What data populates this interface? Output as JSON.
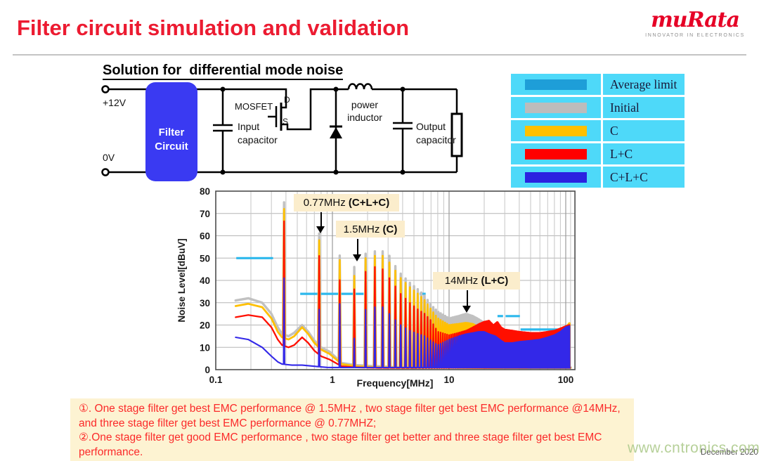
{
  "slide": {
    "title": "Filter circuit simulation and validation",
    "title_color": "#ec1b31"
  },
  "logo": {
    "wordmark": "muRata",
    "tagline": "INNOVATOR IN ELECTRONICS",
    "brand_color": "#e60026"
  },
  "section": {
    "subtitle": "Solution for  differential mode noise"
  },
  "circuit": {
    "filter_box_color": "#3a3af2",
    "labels": {
      "vplus": "+12V",
      "vzero": "0V",
      "filter1": "Filter",
      "filter2": "Circuit",
      "mosfet": "MOSFET",
      "drain": "D",
      "source": "S",
      "incap1": "Input",
      "incap2": "capacitor",
      "ind1": "power",
      "ind2": "inductor",
      "outcap1": "Output",
      "outcap2": "capacitor"
    }
  },
  "legend": {
    "bg": "#4ed9f9",
    "rows": [
      {
        "label": "Average limit",
        "color": "#1e9ed8"
      },
      {
        "label": "Initial",
        "color": "#bcbcbc"
      },
      {
        "label": "C",
        "color": "#ffc000"
      },
      {
        "label": "L+C",
        "color": "#ff0000"
      },
      {
        "label": "C+L+C",
        "color": "#2b22e0"
      }
    ]
  },
  "annotations": [
    {
      "prefix": "0.77MHz ",
      "suffix": "(C+L+C)"
    },
    {
      "prefix": "1.5MHz ",
      "suffix": "(C)"
    },
    {
      "prefix": "14MHz ",
      "suffix": "(L+C)"
    }
  ],
  "chart_data": {
    "type": "line",
    "title": "",
    "xlabel": "Frequency[MHz]",
    "ylabel": "Noise Level[dBuV]",
    "xscale": "log",
    "xlim": [
      0.1,
      120
    ],
    "ylim": [
      0,
      80
    ],
    "yticks": [
      0,
      10,
      20,
      30,
      40,
      50,
      60,
      70,
      80
    ],
    "xtick_values": [
      0.1,
      1,
      10,
      100
    ],
    "xtick_labels": [
      "0.1",
      "1",
      "10",
      "100"
    ],
    "grid": true,
    "legend_position": "outside-top-right",
    "fundamental_mhz": 0.385,
    "data_range_mhz": [
      0.148,
      108
    ],
    "average_limit": {
      "name": "Average limit",
      "color": "#2db8ec",
      "segments_x1_x2_dbuv": [
        [
          0.15,
          0.31,
          50
        ],
        [
          0.53,
          1.85,
          34
        ],
        [
          5.6,
          6.3,
          34
        ],
        [
          26,
          29,
          24
        ],
        [
          30.5,
          40.5,
          24
        ],
        [
          41,
          99,
          18
        ]
      ]
    },
    "series": [
      {
        "name": "Initial",
        "color": "#c1c1c1",
        "width": 3.4,
        "spike_halfwidth": 0.022,
        "floor": [
          [
            0.148,
            31
          ],
          [
            0.19,
            32
          ],
          [
            0.25,
            30
          ],
          [
            0.3,
            25
          ],
          [
            0.34,
            19
          ],
          [
            0.37,
            16
          ],
          [
            0.42,
            15
          ],
          [
            0.47,
            16.5
          ],
          [
            0.55,
            20
          ],
          [
            0.62,
            17
          ],
          [
            0.7,
            13
          ],
          [
            0.8,
            10
          ],
          [
            0.95,
            8
          ],
          [
            1.2,
            3
          ],
          [
            1.6,
            2
          ],
          [
            2.5,
            1.5
          ],
          [
            4,
            1
          ],
          [
            108,
            1
          ]
        ],
        "peak_envelope": [
          [
            0.385,
            75
          ],
          [
            0.77,
            61
          ],
          [
            1.16,
            51
          ],
          [
            1.54,
            46
          ],
          [
            1.93,
            52
          ],
          [
            2.31,
            53
          ],
          [
            2.7,
            53
          ],
          [
            3.08,
            51
          ],
          [
            3.5,
            46
          ],
          [
            3.85,
            43
          ],
          [
            4.6,
            39
          ],
          [
            5.4,
            36
          ],
          [
            6.2,
            33
          ],
          [
            7,
            29
          ],
          [
            8,
            26
          ],
          [
            10,
            23
          ],
          [
            12,
            24
          ],
          [
            14,
            25
          ],
          [
            16,
            24
          ],
          [
            18,
            22.5
          ],
          [
            20,
            21
          ],
          [
            23,
            18
          ],
          [
            26,
            16
          ],
          [
            30,
            15
          ],
          [
            40,
            14.5
          ],
          [
            50,
            15
          ],
          [
            60,
            15
          ],
          [
            70,
            15.5
          ],
          [
            80,
            16
          ],
          [
            90,
            17
          ],
          [
            100,
            19
          ],
          [
            107,
            20.5
          ]
        ]
      },
      {
        "name": "C",
        "color": "#ffc000",
        "width": 2.8,
        "spike_halfwidth": 0.018,
        "floor": [
          [
            0.148,
            28.5
          ],
          [
            0.19,
            29.5
          ],
          [
            0.25,
            28
          ],
          [
            0.3,
            23
          ],
          [
            0.34,
            17
          ],
          [
            0.37,
            14.5
          ],
          [
            0.42,
            13.5
          ],
          [
            0.47,
            15
          ],
          [
            0.55,
            19
          ],
          [
            0.62,
            16
          ],
          [
            0.7,
            12
          ],
          [
            0.8,
            9
          ],
          [
            0.95,
            7
          ],
          [
            1.2,
            2.5
          ],
          [
            1.6,
            1.5
          ],
          [
            2.5,
            1
          ],
          [
            4,
            0.8
          ],
          [
            108,
            0.8
          ]
        ],
        "peak_envelope": [
          [
            0.385,
            72
          ],
          [
            0.77,
            58
          ],
          [
            1.16,
            49
          ],
          [
            1.54,
            42
          ],
          [
            1.93,
            50
          ],
          [
            2.31,
            51
          ],
          [
            2.7,
            51
          ],
          [
            3.08,
            48
          ],
          [
            3.5,
            44
          ],
          [
            3.85,
            41
          ],
          [
            4.6,
            37
          ],
          [
            5.4,
            34
          ],
          [
            6.2,
            31
          ],
          [
            7,
            27
          ],
          [
            8,
            23
          ],
          [
            10,
            20
          ],
          [
            12,
            20.5
          ],
          [
            14,
            21
          ],
          [
            16,
            20.5
          ],
          [
            18,
            19
          ],
          [
            20,
            17
          ],
          [
            23,
            13
          ],
          [
            26,
            11
          ],
          [
            30,
            10
          ],
          [
            40,
            12.5
          ],
          [
            50,
            13.5
          ],
          [
            60,
            14
          ],
          [
            70,
            14.5
          ],
          [
            80,
            15.5
          ],
          [
            90,
            16.5
          ],
          [
            100,
            18.5
          ],
          [
            107,
            20.8
          ]
        ]
      },
      {
        "name": "L+C",
        "color": "#ff0f00",
        "width": 2.3,
        "spike_halfwidth": 0.013,
        "floor": [
          [
            0.148,
            23.5
          ],
          [
            0.19,
            24.5
          ],
          [
            0.25,
            23.5
          ],
          [
            0.3,
            19
          ],
          [
            0.34,
            13.5
          ],
          [
            0.37,
            11
          ],
          [
            0.42,
            10
          ],
          [
            0.47,
            11
          ],
          [
            0.55,
            14.5
          ],
          [
            0.62,
            12
          ],
          [
            0.7,
            8.5
          ],
          [
            0.8,
            6
          ],
          [
            0.95,
            4.5
          ],
          [
            1.2,
            1.5
          ],
          [
            1.6,
            1
          ],
          [
            2.5,
            0.8
          ],
          [
            108,
            0.8
          ]
        ],
        "peak_envelope": [
          [
            0.385,
            66.5
          ],
          [
            0.77,
            51
          ],
          [
            1.16,
            40
          ],
          [
            1.54,
            36
          ],
          [
            1.93,
            44
          ],
          [
            2.31,
            46
          ],
          [
            2.7,
            45
          ],
          [
            3.08,
            41
          ],
          [
            3.5,
            37
          ],
          [
            3.85,
            34
          ],
          [
            4.6,
            30
          ],
          [
            5.4,
            27
          ],
          [
            6.2,
            25
          ],
          [
            7,
            22
          ],
          [
            8,
            17
          ],
          [
            10,
            15.5
          ],
          [
            12,
            16.5
          ],
          [
            14,
            17.5
          ],
          [
            16,
            19
          ],
          [
            18,
            20.5
          ],
          [
            20,
            21.5
          ],
          [
            22,
            22
          ],
          [
            24,
            20
          ],
          [
            26,
            21.5
          ],
          [
            28,
            19
          ],
          [
            30,
            18
          ],
          [
            35,
            17.5
          ],
          [
            40,
            17
          ],
          [
            50,
            16.5
          ],
          [
            60,
            16.5
          ],
          [
            70,
            17
          ],
          [
            80,
            17.5
          ],
          [
            90,
            18.5
          ],
          [
            100,
            19.5
          ],
          [
            107,
            20
          ]
        ]
      },
      {
        "name": "C+L+C",
        "color": "#3328e8",
        "width": 2.1,
        "spike_halfwidth": 0.01,
        "floor": [
          [
            0.148,
            14.5
          ],
          [
            0.19,
            13.5
          ],
          [
            0.25,
            10
          ],
          [
            0.3,
            6
          ],
          [
            0.34,
            3.5
          ],
          [
            0.37,
            2.5
          ],
          [
            0.45,
            2
          ],
          [
            0.55,
            2
          ],
          [
            0.7,
            1.5
          ],
          [
            0.9,
            1
          ],
          [
            108,
            0.8
          ]
        ],
        "peak_envelope": [
          [
            0.385,
            41
          ],
          [
            0.77,
            27
          ],
          [
            1.16,
            29.5
          ],
          [
            1.54,
            14
          ],
          [
            1.93,
            27
          ],
          [
            2.31,
            28
          ],
          [
            2.7,
            28
          ],
          [
            3.08,
            25
          ],
          [
            3.5,
            22
          ],
          [
            3.85,
            20
          ],
          [
            4.6,
            17.5
          ],
          [
            5.4,
            16
          ],
          [
            6.2,
            15
          ],
          [
            7,
            13
          ],
          [
            8,
            11
          ],
          [
            10,
            13.5
          ],
          [
            12,
            15
          ],
          [
            14,
            16
          ],
          [
            16,
            16.5
          ],
          [
            18,
            17
          ],
          [
            20,
            17
          ],
          [
            22,
            16
          ],
          [
            25,
            15
          ],
          [
            28,
            13
          ],
          [
            30,
            12
          ],
          [
            35,
            12
          ],
          [
            40,
            12.5
          ],
          [
            50,
            13
          ],
          [
            60,
            13.5
          ],
          [
            70,
            14.5
          ],
          [
            80,
            15.5
          ],
          [
            90,
            17
          ],
          [
            100,
            19
          ],
          [
            107,
            19.5
          ]
        ]
      }
    ]
  },
  "footer": {
    "note_bg": "#fdf3d2",
    "note_color": "#fb2a2a",
    "note_text": "①. One stage filter get best EMC performance @ 1.5MHz , two stage filter get best EMC performance @14MHz,\nand three stage filter get best EMC performance @ 0.77MHZ;\n②.One stage filter get good EMC performance , two stage filter get better and three stage filter get best EMC\nperformance.",
    "watermark": "www.cntronics.com",
    "date": "December 2020"
  }
}
